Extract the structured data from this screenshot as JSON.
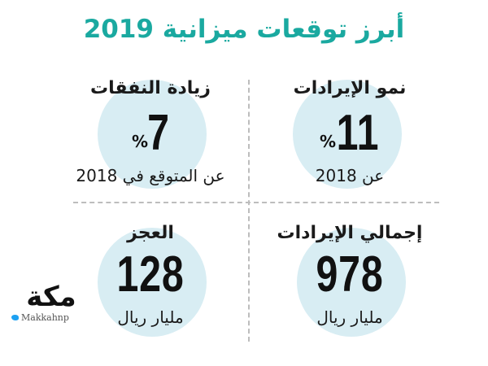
{
  "title": "أبرز توقعات ميزانية 2019",
  "cards": {
    "revenue_growth": {
      "label": "نمو الإيرادات",
      "value": "11",
      "unit": "%",
      "note": "عن 2018"
    },
    "spending_increase": {
      "label": "زيادة النفقات",
      "value": "7",
      "unit": "%",
      "note": "عن المتوقع في 2018"
    },
    "total_revenue": {
      "label": "إجمالي الإيرادات",
      "value": "978",
      "note": "مليار ريال"
    },
    "deficit": {
      "label": "العجز",
      "value": "128",
      "note": "مليار ريال"
    }
  },
  "logo": {
    "mark": "مكة",
    "handle": "Makkahnp"
  },
  "colors": {
    "title": "#1aa9a0",
    "circle": "#d8edf3"
  }
}
